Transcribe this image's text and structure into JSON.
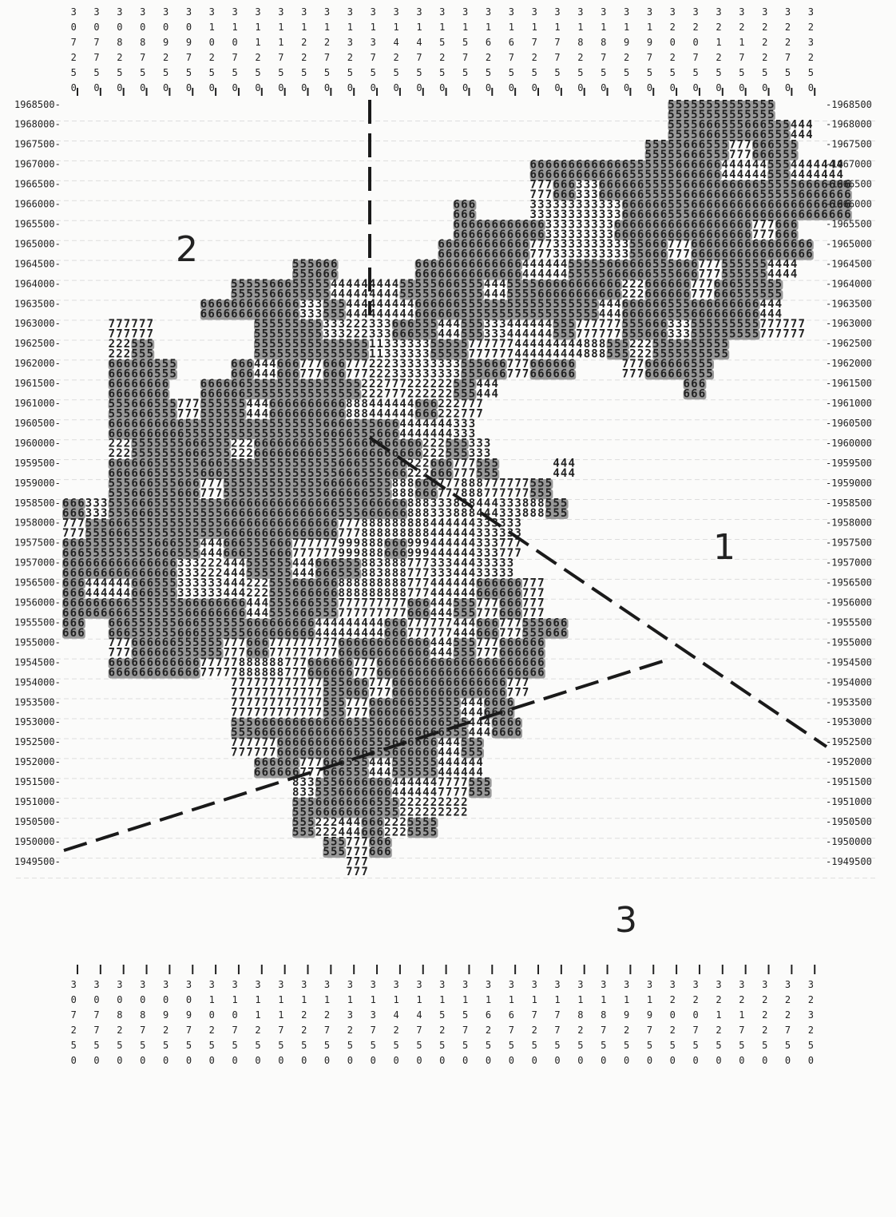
{
  "region_labels": [
    "2",
    "1",
    "3"
  ],
  "top_columns": [
    "307250",
    "307750",
    "308250",
    "308750",
    "309250",
    "309750",
    "310250",
    "310750",
    "311250",
    "311750",
    "312250",
    "312750",
    "313250",
    "313750",
    "314250",
    "314750",
    "315250",
    "315750",
    "316250",
    "316750",
    "317250",
    "317750",
    "318250",
    "318750",
    "319250",
    "319750",
    "320250",
    "320750",
    "321250",
    "321750",
    "322250",
    "322750",
    "323250"
  ],
  "bottom_columns": [
    "307250",
    "307750",
    "308250",
    "308750",
    "309250",
    "309750",
    "310250",
    "310750",
    "311250",
    "311750",
    "312250",
    "312750",
    "313250",
    "313750",
    "314250",
    "314750",
    "315250",
    "315750",
    "316250",
    "316750",
    "317250",
    "317750",
    "318250",
    "318750",
    "319250",
    "319750",
    "320250",
    "320750",
    "321250",
    "321750",
    "322250",
    "322750",
    "323250"
  ],
  "left_labels": [
    "1968500-",
    "1968000-",
    "1967500-",
    "1967000-",
    "1966500-",
    "1966000-",
    "1965500-",
    "1965000-",
    "1964500-",
    "1964000-",
    "1963500-",
    "1963000-",
    "1962500-",
    "1962000-",
    "1961500-",
    "1961000-",
    "1960500-",
    "1960000-",
    "1959500-",
    "1959000-",
    "1958500-",
    "1958000-",
    "1957500-",
    "1957000-",
    "1956500-",
    "1956000-",
    "1955500-",
    "1955000-",
    "1954500-",
    "1954000-",
    "1953500-",
    "1953000-",
    "1952500-",
    "1952000-",
    "1951500-",
    "1951000-",
    "1950500-",
    "1950000-",
    "1949500-"
  ],
  "right_labels": [
    "-1968500",
    "-1968000",
    "-1967500",
    "-1967000",
    "-1966500",
    "-1966000",
    "-1965500",
    "-1965000",
    "-1964500",
    "-1964000",
    "-1963500",
    "-1963000",
    "-1962500",
    "-1962000",
    "-1961500",
    "-1961000",
    "-1960500",
    "-1960000",
    "-1959500",
    "-1959000",
    "-1958500",
    "-1958000",
    "-1957500",
    "-1957000",
    "-1956500",
    "-1956000",
    "-1955500",
    "-1955000",
    "-1954500",
    "-1954000",
    "-1953500",
    "-1953000",
    "-1952500",
    "-1952000",
    "-1951500",
    "-1951000",
    "-1950500",
    "-1950000",
    "-1949500"
  ],
  "map_rows": [
    "                                                                               55555555555555",
    "                                                                               5555666555666555444",
    "                                                                            55555666555777666555",
    "                                                             66666666666665555556666664444445554444444",
    "                                                             777666333666666555556666666666555556666666",
    "                                                   666       333333333333666666555666666666666666666666",
    "                                                   666666666666333333333666666666666666666777666",
    "                                                 6666666666667773333333333556667776666666666666666",
    "                              555666          66666666666666444444555556666665556667775555554444",
    "                      555556665555544444444455555666555444555566666666666222666666777666555555",
    "                  6666666666666333555444444444666666555555555555555555444666666555666666666444",
    "      777777             555555555333222333666555444555333444444555777777555666333555555555777777",
    "      222555             55555555555555511333333555557777774444444448885552225555555555",
    "      666666555       666444666777666777222333333333555666777666666      777666666555",
    "      66666666    666666555555555555555222777222222555444                        666",
    "      5556665557775555554446666666666888444444666222777",
    "      666666666655555555555555555566665556664444444333",
    "      22255555556665552226666666665556666666666222555333",
    "      666666555555666555555555555555666555666222666777555       444",
    "      5556665556667775555555555555666666555888666777888777777555",
    "666333555666555555555666666666666666555666666888333888444333888555",
    "777555666555555555555666666666666666777888888888444444333333",
    "666555555555666555444666555666777777999888666999444444333777",
    "66666666666666633322244455555544466655588388877733344433333",
    "666444444666555333333444222555666666888888888777444444666666777",
    "666666666555555566666666444555666555777777777666444555777666777",
    "666   666555555666555555666666666444444444666777777444666777555666",
    "      777666666555555777666777777777666666666666444555777666666",
    "      666666666666777778888887776666667776666666666666666666666",
    "                      777777777777555666777666666666666666777",
    "                      7777777777775557776666665555554446666",
    "                      55566666666666665556666666665554446666",
    "                      777777666666666666555666666444555",
    "                         666666777666555444555555444444",
    "                              83355566666664444447777555",
    "                              55566666666555222222222",
    "                              5552224446662225555",
    "                                  555777666",
    "                                     777"
  ]
}
